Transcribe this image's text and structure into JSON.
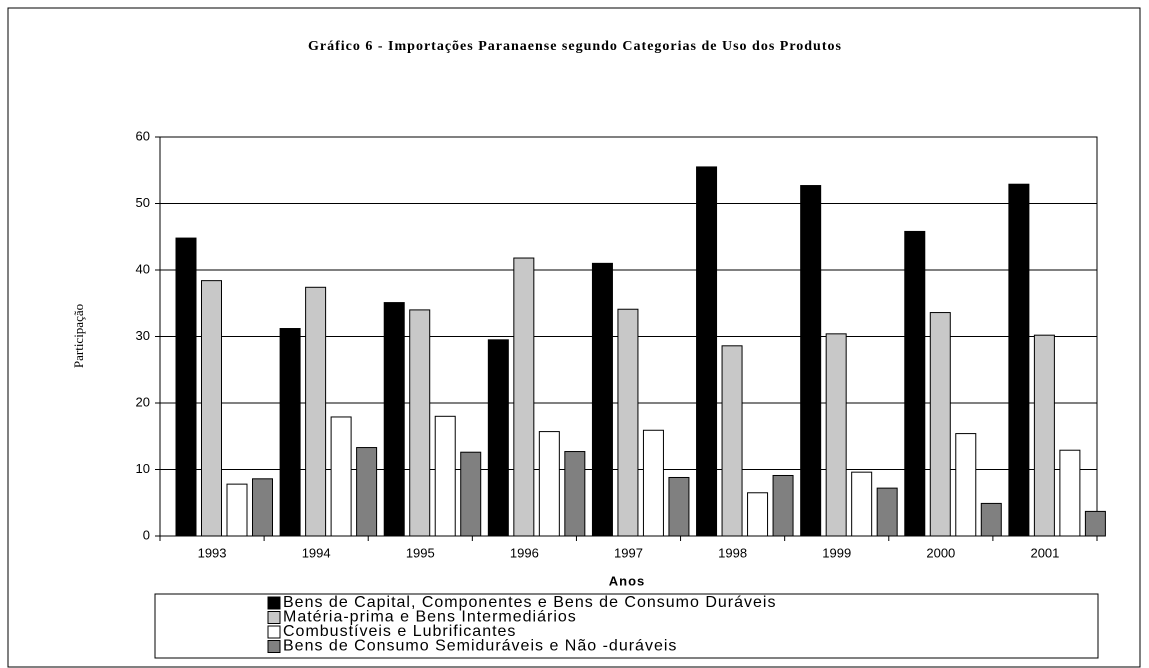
{
  "chart_data": {
    "type": "bar",
    "title": "Gráfico 6 - Importações Paranaense segundo Categorias de Uso dos Produtos",
    "x_label": "Anos",
    "y_label": "Participação",
    "categories": [
      "1993",
      "1994",
      "1995",
      "1996",
      "1997",
      "1998",
      "1999",
      "2000",
      "2001"
    ],
    "series": [
      {
        "name": "Bens de Capital, Componentes e Bens de Consumo Duráveis",
        "color": "#000000",
        "values": [
          44.8,
          31.2,
          35.1,
          29.5,
          41.0,
          55.5,
          52.7,
          45.8,
          52.9
        ]
      },
      {
        "name": "Matéria-prima e Bens Intermediários",
        "color": "#c8c8c8",
        "values": [
          38.4,
          37.4,
          34.0,
          41.8,
          34.1,
          28.6,
          30.4,
          33.6,
          30.2
        ]
      },
      {
        "name": "Combustíveis e Lubrificantes",
        "color": "#ffffff",
        "values": [
          7.8,
          17.9,
          18.0,
          15.7,
          15.9,
          6.5,
          9.6,
          15.4,
          12.9
        ]
      },
      {
        "name": "Bens de Consumo Semiduráveis e Não -duráveis",
        "color": "#808080",
        "values": [
          8.6,
          13.3,
          12.6,
          12.7,
          8.8,
          9.1,
          7.2,
          4.9,
          3.7
        ]
      }
    ],
    "ylim": [
      0,
      60
    ],
    "yticks": [
      0,
      10,
      20,
      30,
      40,
      50,
      60
    ],
    "grid": true,
    "legend": "bottom"
  }
}
